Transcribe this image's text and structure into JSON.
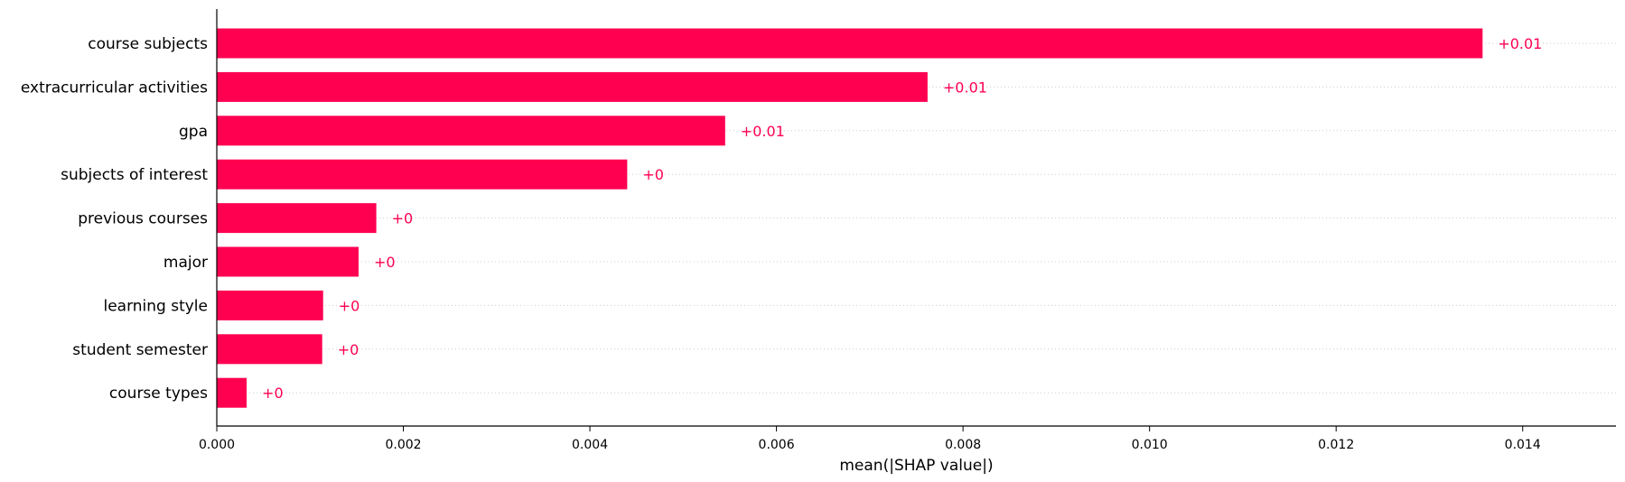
{
  "chart_data": {
    "type": "bar",
    "orientation": "horizontal",
    "xlabel": "mean(|SHAP value|)",
    "ylabel": "",
    "title": "",
    "xlim": [
      0,
      0.015
    ],
    "xticks": [
      0.0,
      0.002,
      0.004,
      0.006,
      0.008,
      0.01,
      0.012,
      0.014
    ],
    "xtick_labels": [
      "0.000",
      "0.002",
      "0.004",
      "0.006",
      "0.008",
      "0.010",
      "0.012",
      "0.014"
    ],
    "categories": [
      "course subjects",
      "extracurricular activities",
      "gpa",
      "subjects of interest",
      "previous courses",
      "major",
      "learning style",
      "student semester",
      "course types"
    ],
    "values": [
      0.01357,
      0.00762,
      0.00545,
      0.0044,
      0.00171,
      0.00152,
      0.00114,
      0.00113,
      0.00032
    ],
    "value_labels": [
      "+0.01",
      "+0.01",
      "+0.01",
      "+0",
      "+0",
      "+0",
      "+0",
      "+0",
      "+0"
    ],
    "grid": "dotted horizontal lines per bar",
    "colors": {
      "bar": "#ff0051",
      "label": "#ff0051",
      "axis": "#000000",
      "grid": "#cccccc"
    }
  }
}
